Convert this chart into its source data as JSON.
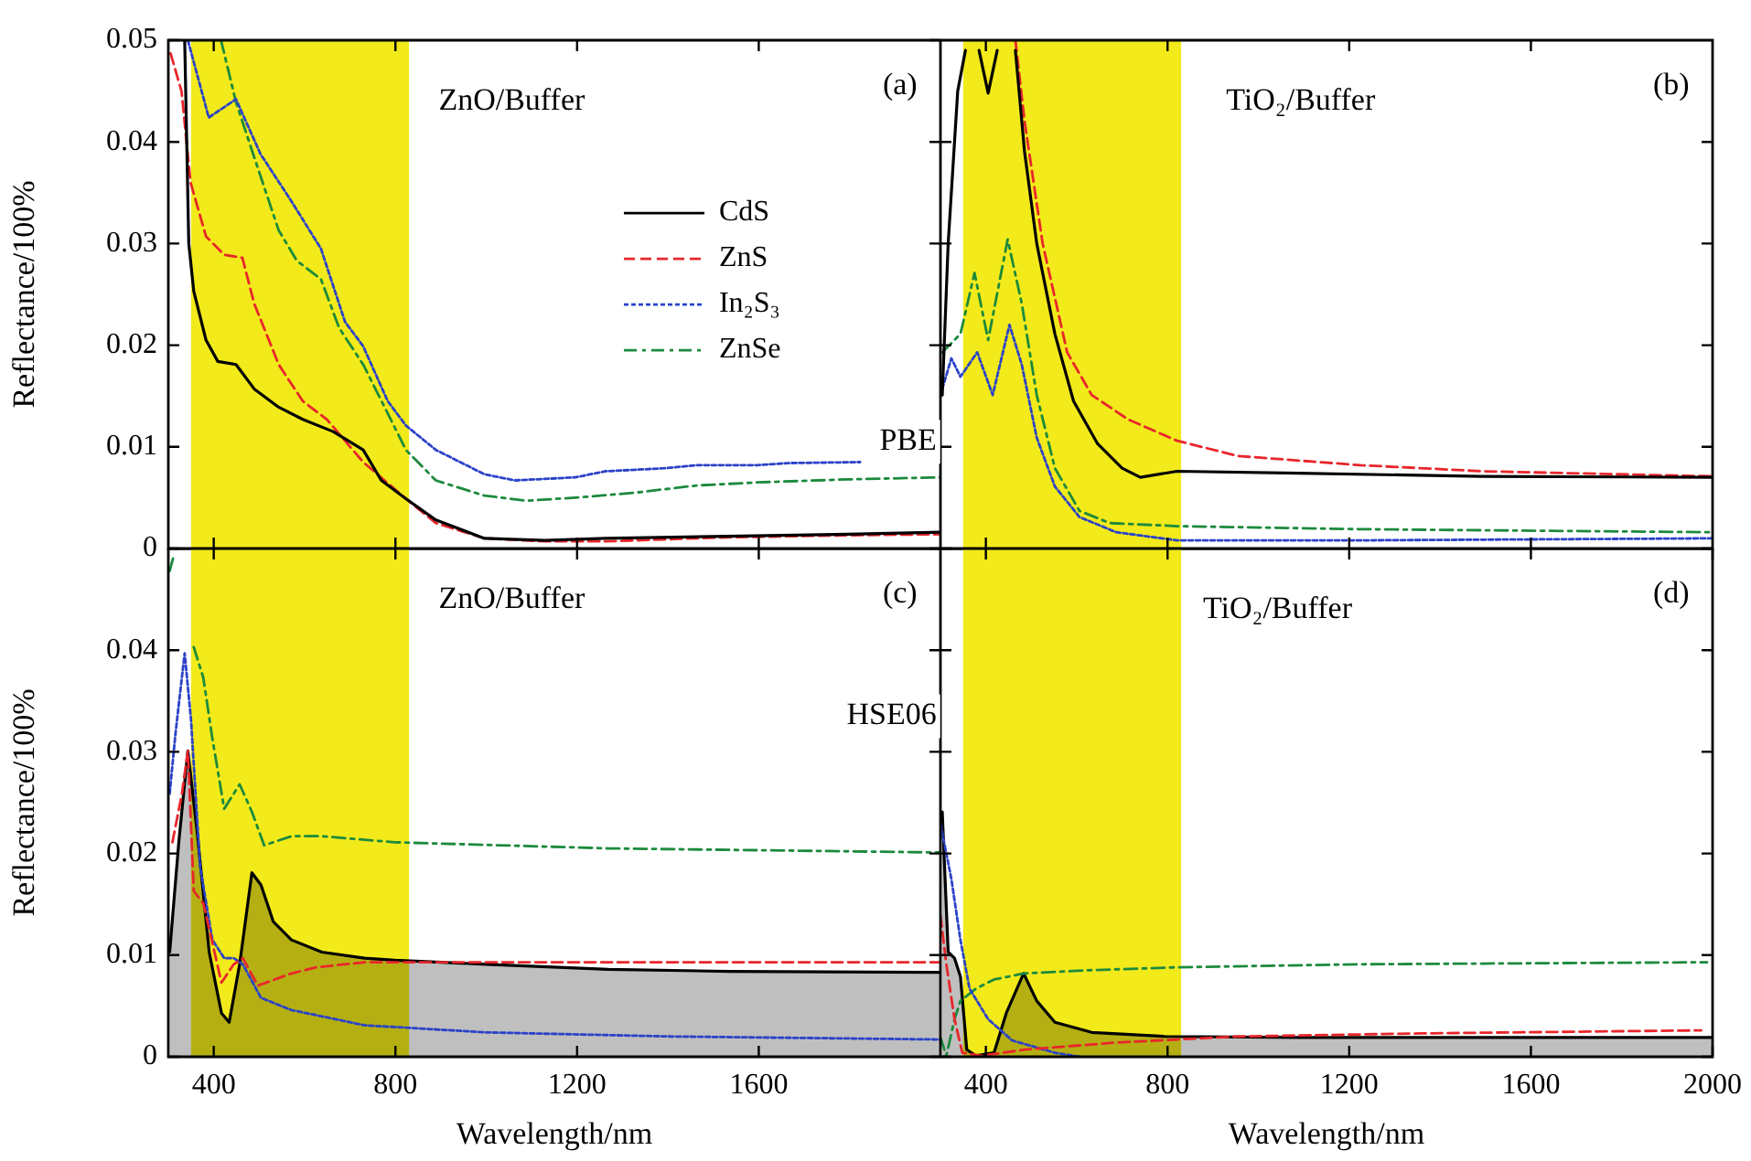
{
  "chart_data": [
    {
      "type": "line",
      "ylabel": "Reflectance/100%",
      "xlim": [
        300,
        2000
      ],
      "xticks": [
        {
          "value": 400,
          "label": null
        },
        {
          "value": 800,
          "label": null
        },
        {
          "value": 1200,
          "label": null
        },
        {
          "value": 1600,
          "label": null
        }
      ],
      "ylim": [
        0,
        0.05
      ],
      "yticks": [
        0,
        0.01,
        0.02,
        0.03,
        0.04,
        0.05
      ],
      "tick_labels": "y",
      "marker": "none",
      "legend": "right",
      "grid": false,
      "bands": [
        {
          "axis": "x",
          "from": 350,
          "to": 830,
          "color": "#f2ea1a"
        }
      ],
      "annotations": [
        "ZnO/Buffer",
        "(a)",
        "PBE"
      ],
      "series": [
        {
          "name": "CdS",
          "line_style": "solid",
          "color": "#000000",
          "x": [
            336,
            345,
            356,
            383,
            409,
            449,
            489,
            543,
            596,
            663,
            729,
            769,
            823,
            889,
            996,
            1129,
            1263,
            1529,
            1796,
            2000
          ],
          "values": [
            0.05,
            0.03,
            0.0253,
            0.0205,
            0.0184,
            0.0181,
            0.0157,
            0.0139,
            0.0127,
            0.0115,
            0.0097,
            0.0067,
            0.0049,
            0.0028,
            0.001,
            0.0008,
            0.001,
            0.0012,
            0.0014,
            0.0016
          ]
        },
        {
          "name": "ZnS",
          "line_style": "dashed",
          "color": "#e8262b",
          "x": [
            305,
            329,
            349,
            383,
            423,
            463,
            489,
            543,
            596,
            649,
            729,
            823,
            889,
            996,
            1129,
            1263,
            1529,
            1796,
            2000
          ],
          "values": [
            0.0487,
            0.045,
            0.036,
            0.0307,
            0.0289,
            0.0286,
            0.0241,
            0.0181,
            0.0145,
            0.0127,
            0.0085,
            0.0049,
            0.0025,
            0.001,
            0.0007,
            0.0007,
            0.0011,
            0.0013,
            0.0014
          ]
        },
        {
          "name": "In₂S₃",
          "line_style": "dotted",
          "color": "#2b43c8",
          "x": [
            343,
            389,
            449,
            503,
            569,
            636,
            689,
            729,
            783,
            823,
            889,
            996,
            1063,
            1196,
            1263,
            1396,
            1463,
            1596,
            1663,
            1823
          ],
          "values": [
            0.05,
            0.0424,
            0.0442,
            0.0388,
            0.0343,
            0.0295,
            0.0223,
            0.0199,
            0.0145,
            0.0121,
            0.0097,
            0.0073,
            0.0067,
            0.007,
            0.0076,
            0.0079,
            0.0082,
            0.0082,
            0.0084,
            0.0085
          ]
        },
        {
          "name": "ZnSe",
          "line_style": "dashdot",
          "color": "#1c8a3c",
          "x": [
            416,
            449,
            489,
            543,
            583,
            636,
            676,
            729,
            783,
            823,
            889,
            996,
            1089,
            1196,
            1329,
            1463,
            1596,
            1796,
            2000
          ],
          "values": [
            0.05,
            0.0439,
            0.0385,
            0.0313,
            0.0283,
            0.0265,
            0.0217,
            0.0181,
            0.0133,
            0.0097,
            0.0067,
            0.0052,
            0.0047,
            0.005,
            0.0055,
            0.0062,
            0.0065,
            0.0068,
            0.007
          ]
        }
      ]
    },
    {
      "type": "line",
      "xlim": [
        300,
        2000
      ],
      "xticks": [
        {
          "value": 400,
          "label": null
        },
        {
          "value": 800,
          "label": null
        },
        {
          "value": 1200,
          "label": null
        },
        {
          "value": 1600,
          "label": null
        }
      ],
      "ylim": [
        0,
        0.05
      ],
      "yticks": [
        {
          "value": 0,
          "label": null
        },
        {
          "value": 0.01,
          "label": null
        },
        {
          "value": 0.02,
          "label": null
        },
        {
          "value": 0.03,
          "label": null
        },
        {
          "value": 0.04,
          "label": null
        }
      ],
      "tick_labels": false,
      "marker": "none",
      "grid": false,
      "bands": [
        {
          "axis": "x",
          "from": 350,
          "to": 830,
          "color": "#f2ea1a"
        }
      ],
      "annotations": [
        "TiO₂/Buffer",
        "(b)"
      ],
      "series": [
        {
          "line_style": "solid",
          "color": "#000000",
          "x": [
            304,
            317,
            338,
            355,
            362,
            385,
            405,
            425,
            440,
            465,
            485,
            512,
            552,
            593,
            646,
            700,
            740,
            821,
            1089,
            1492,
            2000
          ],
          "values": [
            0.0151,
            0.03,
            0.045,
            0.049,
            null,
            0.049,
            0.0448,
            0.049,
            null,
            0.049,
            0.0391,
            0.03,
            0.0211,
            0.0145,
            0.0103,
            0.0079,
            0.007,
            0.0076,
            0.0074,
            0.0071,
            0.007
          ]
        },
        {
          "line_style": "dashed",
          "color": "#e8262b",
          "x": [
            465,
            485,
            525,
            579,
            633,
            713,
            821,
            955,
            1224,
            1492,
            2000
          ],
          "values": [
            0.05,
            0.0421,
            0.03,
            0.0193,
            0.0151,
            0.0127,
            0.0106,
            0.0091,
            0.0082,
            0.0076,
            0.0071
          ]
        },
        {
          "line_style": "dotted",
          "color": "#2b43c8",
          "x": [
            304,
            324,
            344,
            381,
            415,
            452,
            479,
            512,
            552,
            606,
            687,
            821,
            1224,
            2000
          ],
          "values": [
            0.0157,
            0.0187,
            0.0169,
            0.0193,
            0.0151,
            0.022,
            0.0181,
            0.0109,
            0.0061,
            0.0031,
            0.0016,
            0.0008,
            0.0008,
            0.001
          ]
        },
        {
          "line_style": "dashdot",
          "color": "#1c8a3c",
          "x": [
            304,
            344,
            375,
            405,
            448,
            479,
            512,
            552,
            606,
            673,
            821,
            1224,
            2000
          ],
          "values": [
            0.0193,
            0.0211,
            0.0271,
            0.0205,
            0.0304,
            0.0241,
            0.0151,
            0.0079,
            0.0037,
            0.0025,
            0.0022,
            0.0019,
            0.0016
          ]
        }
      ]
    },
    {
      "type": "line",
      "ylabel": "Reflectance/100%",
      "xlabel": "Wavelength/nm",
      "xlim": [
        300,
        2000
      ],
      "xticks": [
        400,
        800,
        1200,
        1600
      ],
      "ylim": [
        0,
        0.05
      ],
      "yticks": [
        0,
        0.01,
        0.02,
        0.03,
        0.04
      ],
      "marker": "none",
      "grid": false,
      "bands": [
        {
          "axis": "x",
          "from": 350,
          "to": 830,
          "color": "#f2ea1a"
        }
      ],
      "annotations": [
        "ZnO/Buffer",
        "(c)",
        "HSE06"
      ],
      "series": [
        {
          "type": "area",
          "line_style": "solid",
          "color": "#000000",
          "x": [
            303,
            323,
            343,
            363,
            390,
            417,
            434,
            457,
            484,
            504,
            531,
            571,
            638,
            732,
            799,
            1000,
            1269,
            1537,
            2000
          ],
          "values": [
            0.0103,
            0.0211,
            0.0301,
            0.0223,
            0.0103,
            0.0043,
            0.0034,
            0.0091,
            0.0181,
            0.0169,
            0.0133,
            0.0115,
            0.0103,
            0.0097,
            0.0095,
            0.0091,
            0.0086,
            0.0084,
            0.0083
          ]
        },
        {
          "line_style": "dashed",
          "color": "#e8262b",
          "x": [
            309,
            330,
            343,
            356,
            377,
            417,
            444,
            464,
            497,
            571,
            625,
            732,
            1000,
            2000
          ],
          "values": [
            0.0211,
            0.0259,
            0.0301,
            0.0163,
            0.0151,
            0.0073,
            0.0091,
            0.0097,
            0.007,
            0.0082,
            0.0088,
            0.0093,
            0.0093,
            0.0093
          ]
        },
        {
          "line_style": "dotted",
          "color": "#2b43c8",
          "x": [
            303,
            316,
            336,
            350,
            370,
            397,
            423,
            444,
            464,
            504,
            571,
            732,
            1000,
            1403,
            2000
          ],
          "values": [
            0.0259,
            0.0319,
            0.0397,
            0.0331,
            0.0187,
            0.0115,
            0.0097,
            0.0097,
            0.0091,
            0.0058,
            0.0046,
            0.0031,
            0.0024,
            0.002,
            0.0017
          ]
        },
        {
          "line_style": "dashdot",
          "color": "#1c8a3c",
          "x": [
            303,
            312,
            320,
            350,
            356,
            377,
            397,
            423,
            457,
            484,
            511,
            571,
            638,
            799,
            1269,
            2000
          ],
          "values": [
            0.0478,
            0.0493,
            null,
            null,
            0.0403,
            0.0373,
            0.0313,
            0.0244,
            0.0268,
            0.0241,
            0.0208,
            0.0217,
            0.0217,
            0.0211,
            0.0205,
            0.0201
          ]
        }
      ]
    },
    {
      "type": "line",
      "xlabel": "Wavelength/nm",
      "xlim": [
        300,
        2000
      ],
      "xticks": [
        400,
        800,
        1200,
        1600,
        2000
      ],
      "ylim": [
        0,
        0.05
      ],
      "yticks": [
        {
          "value": 0,
          "label": null
        },
        {
          "value": 0.01,
          "label": null
        },
        {
          "value": 0.02,
          "label": null
        },
        {
          "value": 0.03,
          "label": null
        },
        {
          "value": 0.04,
          "label": null
        }
      ],
      "tick_labels": "x",
      "marker": "none",
      "grid": false,
      "bands": [
        {
          "axis": "x",
          "from": 350,
          "to": 830,
          "color": "#f2ea1a"
        }
      ],
      "annotations": [
        "TiO₂/Buffer",
        "(d)"
      ],
      "series": [
        {
          "type": "area",
          "line_style": "solid",
          "color": "#000000",
          "x": [
            304,
            317,
            331,
            344,
            358,
            378,
            418,
            445,
            483,
            512,
            552,
            633,
            794,
            1089,
            2000
          ],
          "values": [
            0.0241,
            0.0103,
            0.0097,
            0.0079,
            0.0007,
            0.0001,
            0.0004,
            0.0043,
            0.0082,
            0.0055,
            0.0034,
            0.0024,
            0.002,
            0.0019,
            0.0019
          ]
        },
        {
          "line_style": "dashed",
          "color": "#e8262b",
          "x": [
            300,
            313,
            331,
            348,
            391,
            485,
            687,
            955,
            1358,
            1975
          ],
          "values": [
            0.0139,
            0.0091,
            0.0037,
            0.0004,
            0.0001,
            0.0007,
            0.0014,
            0.002,
            0.0023,
            0.0026
          ]
        },
        {
          "line_style": "dotted",
          "color": "#2b43c8",
          "x": [
            300,
            324,
            344,
            364,
            405,
            458,
            552,
            606
          ],
          "values": [
            0.0229,
            0.0175,
            0.0115,
            0.0067,
            0.0037,
            0.0016,
            0.0004,
            0
          ]
        },
        {
          "line_style": "dashdot",
          "color": "#1c8a3c",
          "x": [
            300,
            313,
            331,
            344,
            378,
            418,
            483,
            619,
            821,
            1224,
            1988
          ],
          "values": [
            0.0019,
            0.0001,
            0.0037,
            0.0055,
            0.0067,
            0.0076,
            0.0082,
            0.0085,
            0.0088,
            0.0091,
            0.0093
          ]
        }
      ]
    }
  ]
}
